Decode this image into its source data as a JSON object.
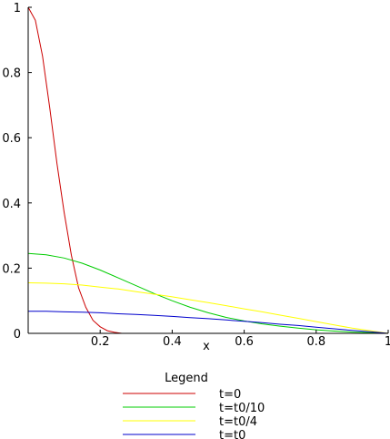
{
  "chart_data": {
    "type": "line",
    "title": "",
    "xlabel": "x",
    "ylabel": "",
    "xlim": [
      0,
      1
    ],
    "ylim": [
      0,
      1
    ],
    "xticks": [
      0,
      0.2,
      0.4,
      0.6,
      0.8,
      1
    ],
    "yticks": [
      0,
      0.2,
      0.4,
      0.6,
      0.8,
      1
    ],
    "x_tick_labels": [
      "0.2",
      "0.4",
      "0.6",
      "0.8",
      "1"
    ],
    "y_tick_labels": [
      "0",
      "0.2",
      "0.4",
      "0.6",
      "0.8",
      "1"
    ],
    "grid": false,
    "legend": {
      "title": "Legend",
      "position": "bottom"
    },
    "series": [
      {
        "name": "t=0",
        "color": "#cc0000",
        "x": [
          0,
          0.02,
          0.04,
          0.06,
          0.08,
          0.1,
          0.12,
          0.14,
          0.16,
          0.18,
          0.2,
          0.22,
          0.24,
          0.26
        ],
        "y": [
          1.0,
          0.96,
          0.85,
          0.69,
          0.52,
          0.37,
          0.24,
          0.14,
          0.08,
          0.04,
          0.02,
          0.008,
          0.003,
          0.0
        ]
      },
      {
        "name": "t=t0/10",
        "color": "#00cc00",
        "x": [
          0,
          0.05,
          0.1,
          0.15,
          0.2,
          0.25,
          0.3,
          0.35,
          0.4,
          0.45,
          0.5,
          0.55,
          0.6,
          0.65,
          0.7,
          0.75,
          0.8,
          0.85,
          0.9,
          0.95,
          1.0
        ],
        "y": [
          0.245,
          0.241,
          0.231,
          0.215,
          0.194,
          0.17,
          0.146,
          0.122,
          0.1,
          0.08,
          0.063,
          0.049,
          0.038,
          0.029,
          0.022,
          0.016,
          0.011,
          0.007,
          0.004,
          0.002,
          0.0
        ]
      },
      {
        "name": "t=t0/4",
        "color": "#ffff00",
        "x": [
          0,
          0.05,
          0.1,
          0.15,
          0.2,
          0.25,
          0.3,
          0.35,
          0.4,
          0.45,
          0.5,
          0.55,
          0.6,
          0.65,
          0.7,
          0.75,
          0.8,
          0.85,
          0.9,
          0.95,
          1.0
        ],
        "y": [
          0.155,
          0.154,
          0.152,
          0.148,
          0.142,
          0.136,
          0.128,
          0.12,
          0.112,
          0.103,
          0.094,
          0.085,
          0.075,
          0.066,
          0.056,
          0.046,
          0.036,
          0.026,
          0.016,
          0.008,
          0.0
        ]
      },
      {
        "name": "t=t0",
        "color": "#0000cc",
        "x": [
          0,
          0.05,
          0.1,
          0.15,
          0.2,
          0.25,
          0.3,
          0.35,
          0.4,
          0.45,
          0.5,
          0.55,
          0.6,
          0.65,
          0.7,
          0.75,
          0.8,
          0.85,
          0.9,
          0.95,
          1.0
        ],
        "y": [
          0.068,
          0.068,
          0.066,
          0.065,
          0.063,
          0.06,
          0.058,
          0.055,
          0.052,
          0.048,
          0.045,
          0.041,
          0.037,
          0.033,
          0.028,
          0.024,
          0.019,
          0.014,
          0.009,
          0.005,
          0.0
        ]
      }
    ]
  }
}
